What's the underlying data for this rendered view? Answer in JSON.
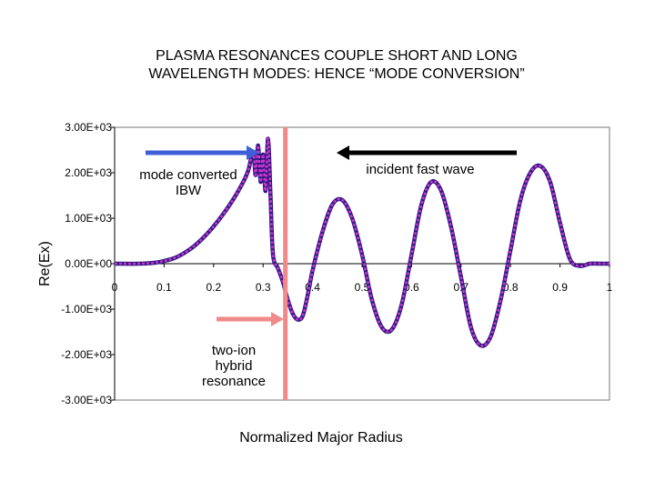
{
  "title": {
    "line1": "PLASMA RESONANCES COUPLE SHORT AND LONG",
    "line2": "WAVELENGTH MODES:  HENCE “MODE CONVERSION”"
  },
  "chart_data": {
    "type": "line",
    "title": "PLASMA RESONANCES COUPLE SHORT AND LONG WAVELENGTH MODES:  HENCE “MODE CONVERSION”",
    "xlabel": "Normalized Major Radius",
    "ylabel": "Re(Ex)",
    "xlim": [
      0,
      1
    ],
    "ylim": [
      -3000,
      3000
    ],
    "x_ticks": [
      0,
      0.1,
      0.2,
      0.3,
      0.4,
      0.5,
      0.6,
      0.7,
      0.8,
      0.9,
      1
    ],
    "x_tick_labels": [
      "0",
      "0.1",
      "0.2",
      "0.3",
      "0.4",
      "0.5",
      "0.6",
      "0.7",
      "0.8",
      "0.9",
      "1"
    ],
    "y_ticks": [
      3000,
      2000,
      1000,
      0,
      -1000,
      -2000,
      -3000
    ],
    "y_tick_labels": [
      "3.00E+03",
      "2.00E+03",
      "1.00E+03",
      "0.00E+00",
      "-1.00E+03",
      "-2.00E+03",
      "-3.00E+03"
    ],
    "series": [
      {
        "name": "Re(Ex)",
        "color": "#cc33cc",
        "edge_color": "#2a1a80",
        "x": [
          0,
          0.05,
          0.08,
          0.1,
          0.12,
          0.14,
          0.16,
          0.18,
          0.2,
          0.22,
          0.24,
          0.26,
          0.27,
          0.28,
          0.285,
          0.29,
          0.295,
          0.3,
          0.305,
          0.31,
          0.315,
          0.32,
          0.33,
          0.34,
          0.35,
          0.36,
          0.37,
          0.38,
          0.39,
          0.4,
          0.42,
          0.44,
          0.46,
          0.48,
          0.5,
          0.52,
          0.54,
          0.56,
          0.58,
          0.6,
          0.62,
          0.64,
          0.66,
          0.68,
          0.7,
          0.72,
          0.74,
          0.76,
          0.78,
          0.8,
          0.82,
          0.84,
          0.86,
          0.88,
          0.9,
          0.92,
          0.94,
          0.96,
          0.98,
          1
        ],
        "y": [
          0,
          0,
          20,
          60,
          120,
          230,
          380,
          580,
          820,
          1100,
          1420,
          1800,
          2050,
          2450,
          1950,
          2600,
          1800,
          2400,
          1600,
          2750,
          1500,
          200,
          -100,
          -400,
          -800,
          -1100,
          -1230,
          -1150,
          -700,
          -150,
          700,
          1300,
          1400,
          1000,
          200,
          -800,
          -1400,
          -1450,
          -900,
          200,
          1300,
          1800,
          1600,
          800,
          -300,
          -1400,
          -1800,
          -1600,
          -800,
          300,
          1400,
          2000,
          2150,
          1800,
          900,
          100,
          -50,
          0,
          0,
          0
        ]
      }
    ],
    "annotations": [
      {
        "text_lines": [
          "incident fast wave"
        ],
        "arrow": "left",
        "arrow_color": "#000000"
      },
      {
        "text_lines": [
          "mode converted",
          "IBW"
        ],
        "arrow": "right",
        "arrow_color": "#3f5fd8"
      },
      {
        "text_lines": [
          "two-ion",
          "hybrid",
          "resonance"
        ],
        "arrow": "right",
        "arrow_color": "#f08a8a"
      }
    ],
    "resonance_line": {
      "x": 0.345,
      "color": "#f08a8a"
    },
    "grid": false,
    "legend": "none"
  }
}
